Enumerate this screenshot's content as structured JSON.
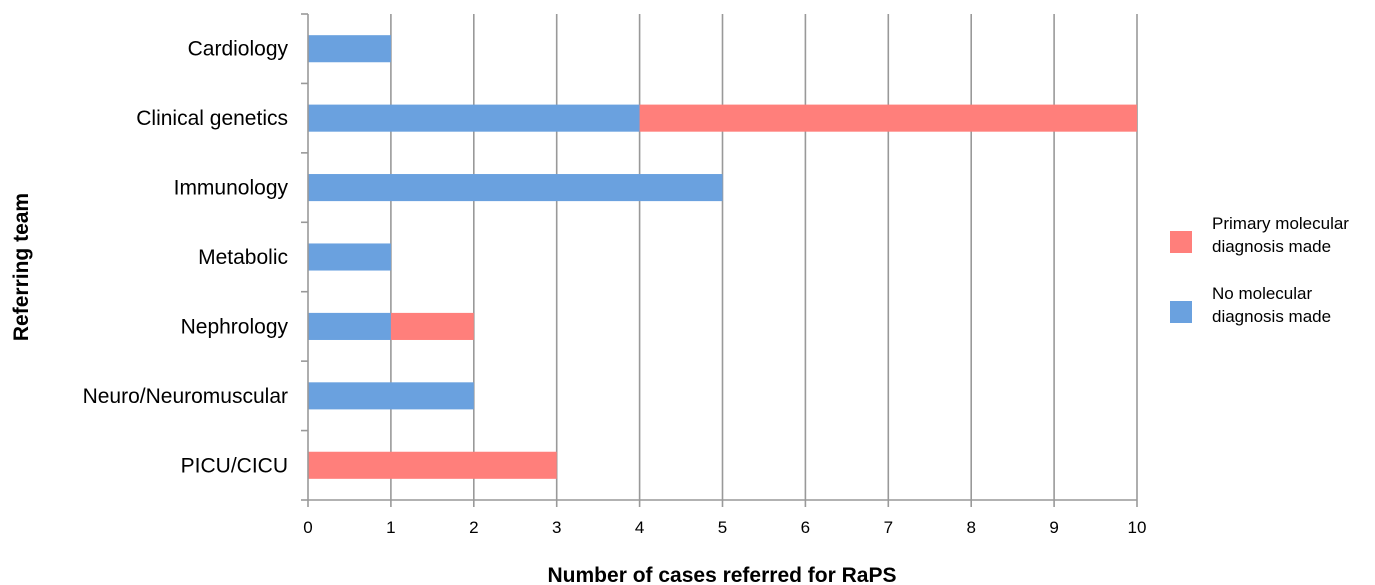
{
  "chart_data": {
    "type": "bar",
    "orientation": "horizontal",
    "stacked": true,
    "categories": [
      "Cardiology",
      "Clinical genetics",
      "Immunology",
      "Metabolic",
      "Nephrology",
      "Neuro/Neuromuscular",
      "PICU/CICU"
    ],
    "series": [
      {
        "name": "No molecular diagnosis made",
        "color": "#6AA1DF",
        "values": [
          1,
          4,
          5,
          1,
          1,
          2,
          0
        ]
      },
      {
        "name": "Primary molecular diagnosis made",
        "color": "#FF7F7B",
        "values": [
          0,
          6,
          0,
          0,
          1,
          0,
          3
        ]
      }
    ],
    "xlabel": "Number of cases referred for RaPS",
    "ylabel": "Referring team",
    "xlim": [
      0,
      10
    ],
    "xticks": [
      "0",
      "1",
      "2",
      "3",
      "4",
      "5",
      "6",
      "7",
      "8",
      "9",
      "10"
    ],
    "grid": {
      "vertical": true,
      "color": "#999999"
    },
    "legend": {
      "position": "right",
      "entries": [
        {
          "series": 1,
          "lines": [
            "Primary molecular",
            "diagnosis made"
          ]
        },
        {
          "series": 0,
          "lines": [
            "No molecular",
            "diagnosis made"
          ]
        }
      ]
    }
  }
}
